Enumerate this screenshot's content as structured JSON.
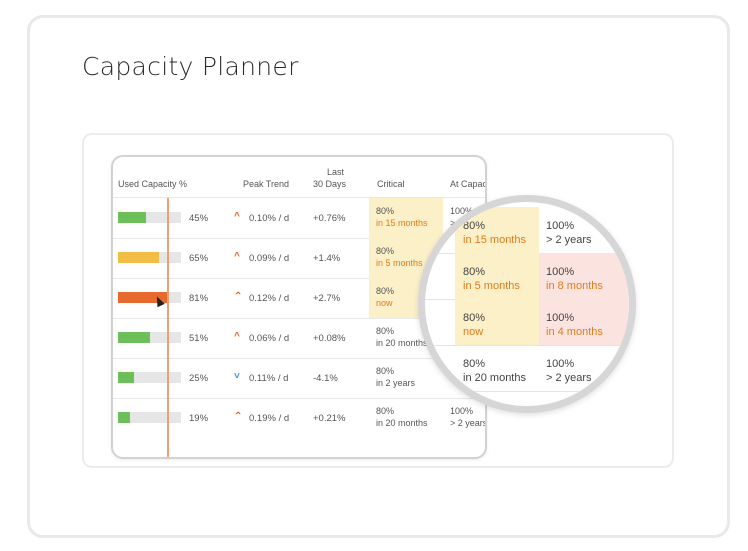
{
  "page": {
    "title": "Capacity Planner"
  },
  "table": {
    "headers": {
      "used": "Used Capacity %",
      "trend": "Peak Trend",
      "last_line1": "Last",
      "last_line2": "30 Days",
      "critical": "Critical",
      "at_capacity": "At Capac"
    },
    "rows": [
      {
        "fill_percent": 45,
        "bar_color": "#6dbf5a",
        "used": "45%",
        "trend_dir": "up",
        "trend_icon": "^",
        "trend": "0.10% / d",
        "last30": "+0.76%",
        "crit_pct": "80%",
        "crit_when": "in 15 months",
        "crit_highlight": true,
        "cap_pct": "100%",
        "cap_when": "> 2"
      },
      {
        "fill_percent": 65,
        "bar_color": "#f2bd45",
        "used": "65%",
        "trend_dir": "up",
        "trend_icon": "^",
        "trend": "0.09% / d",
        "last30": "+1.4%",
        "crit_pct": "80%",
        "crit_when": "in 5 months",
        "crit_highlight": true,
        "cap_pct": "",
        "cap_when": ""
      },
      {
        "fill_percent": 81,
        "bar_color": "#e8692e",
        "used": "81%",
        "trend_dir": "up-double",
        "trend_icon": "⌃",
        "trend": "0.12% / d",
        "last30": "+2.7%",
        "crit_pct": "80%",
        "crit_when": "now",
        "crit_highlight": true,
        "cap_pct": "",
        "cap_when": ""
      },
      {
        "fill_percent": 51,
        "bar_color": "#6dbf5a",
        "used": "51%",
        "trend_dir": "up",
        "trend_icon": "^",
        "trend": "0.06% / d",
        "last30": "+0.08%",
        "crit_pct": "80%",
        "crit_when": "in 20 months",
        "crit_highlight": false,
        "cap_pct": "",
        "cap_when": ""
      },
      {
        "fill_percent": 25,
        "bar_color": "#6dbf5a",
        "used": "25%",
        "trend_dir": "down",
        "trend_icon": "˅",
        "trend": "0.11% / d",
        "last30": "-4.1%",
        "crit_pct": "80%",
        "crit_when": "in 2 years",
        "crit_highlight": false,
        "cap_pct": "",
        "cap_when": ""
      },
      {
        "fill_percent": 19,
        "bar_color": "#6dbf5a",
        "used": "19%",
        "trend_dir": "up-double",
        "trend_icon": "⌃",
        "trend": "0.19% / d",
        "last30": "+0.21%",
        "crit_pct": "80%",
        "crit_when": "in 20 months",
        "crit_highlight": false,
        "cap_pct": "100%",
        "cap_when": "> 2 years"
      }
    ]
  },
  "magnifier": {
    "rows": [
      {
        "crit_pct": "80%",
        "crit_when": "in 15 months",
        "crit_style": "warn",
        "cap_pct": "100%",
        "cap_when": "> 2 years",
        "cap_style": "normal"
      },
      {
        "crit_pct": "80%",
        "crit_when": "in 5 months",
        "crit_style": "warn",
        "cap_pct": "100%",
        "cap_when": "in 8 months",
        "cap_style": "alert"
      },
      {
        "crit_pct": "80%",
        "crit_when": "now",
        "crit_style": "warn",
        "cap_pct": "100%",
        "cap_when": "in 4 months",
        "cap_style": "alert"
      },
      {
        "crit_pct": "80%",
        "crit_when": "in 20 months",
        "crit_style": "normal",
        "cap_pct": "100%",
        "cap_when": "> 2 years",
        "cap_style": "normal"
      }
    ]
  },
  "colors": {
    "green": "#6dbf5a",
    "yellow": "#f2bd45",
    "orange": "#e8692e",
    "warn_bg": "#fbf0c8",
    "alert_bg": "#fbe4e0",
    "warn_text": "#e07b1a"
  },
  "icons": {
    "trend_up": "chevron-up-icon",
    "trend_up_double": "double-chevron-up-icon",
    "trend_down": "chevron-down-icon",
    "cursor": "mouse-pointer-icon"
  }
}
